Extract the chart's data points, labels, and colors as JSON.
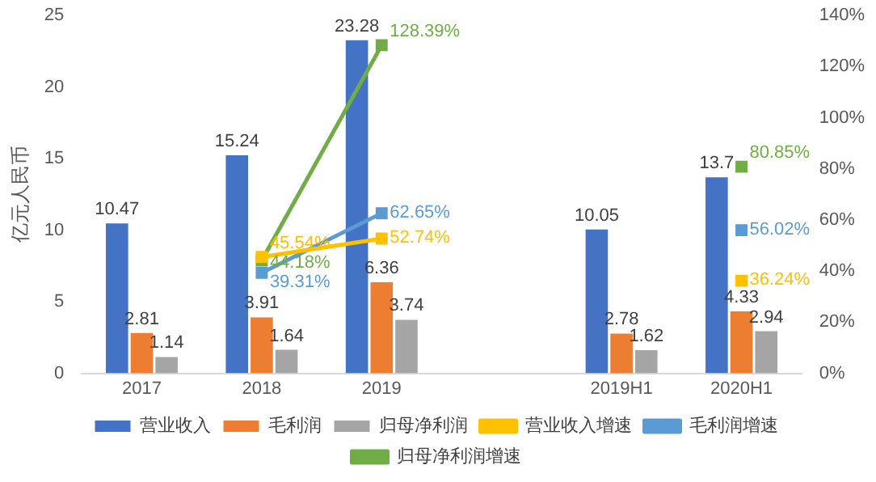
{
  "chart_data": {
    "type": "bar",
    "ylabel": "亿元人民币",
    "categories": [
      "2017",
      "2018",
      "2019",
      null,
      "2019H1",
      "2020H1"
    ],
    "series": [
      {
        "name": "营业收入",
        "color": "#4472c4",
        "values": [
          10.47,
          15.24,
          23.28,
          null,
          10.05,
          13.7
        ],
        "value_labels": [
          "10.47",
          "15.24",
          "23.28",
          null,
          "10.05",
          "13.7"
        ]
      },
      {
        "name": "毛利润",
        "color": "#ed7d31",
        "values": [
          2.81,
          3.91,
          6.36,
          null,
          2.78,
          4.33
        ],
        "value_labels": [
          "2.81",
          "3.91",
          "6.36",
          null,
          "2.78",
          "4.33"
        ]
      },
      {
        "name": "归母净利润",
        "color": "#a5a5a5",
        "values": [
          1.14,
          1.64,
          3.74,
          null,
          1.62,
          2.94
        ],
        "value_labels": [
          "1.14",
          "1.64",
          "3.74",
          null,
          "1.62",
          "2.94"
        ]
      },
      {
        "name": "营业收入增速",
        "type": "line",
        "axis": "y2",
        "color": "#ffc000",
        "values": [
          null,
          45.54,
          52.74,
          null,
          null,
          36.24
        ],
        "value_labels": [
          null,
          "45.54%",
          "52.74%",
          null,
          null,
          "36.24%"
        ]
      },
      {
        "name": "毛利润增速",
        "type": "line",
        "axis": "y2",
        "color": "#5b9bd5",
        "values": [
          null,
          39.31,
          62.65,
          null,
          null,
          56.02
        ],
        "value_labels": [
          null,
          "39.31%",
          "62.65%",
          null,
          null,
          "56.02%"
        ]
      },
      {
        "name": "归母净利润增速",
        "type": "line",
        "axis": "y2",
        "color": "#70ad47",
        "values": [
          null,
          44.18,
          128.39,
          null,
          null,
          80.85
        ],
        "value_labels": [
          null,
          "44.18%",
          "128.39%",
          null,
          null,
          "80.85%"
        ]
      }
    ],
    "ylim": [
      0,
      25
    ],
    "yticks": [
      0,
      5,
      10,
      15,
      20,
      25
    ],
    "y2lim": [
      0,
      140
    ],
    "y2ticks": [
      {
        "value": 0,
        "label": "0%"
      },
      {
        "value": 20,
        "label": "20%"
      },
      {
        "value": 40,
        "label": "40%"
      },
      {
        "value": 60,
        "label": "60%"
      },
      {
        "value": 80,
        "label": "80%"
      },
      {
        "value": 100,
        "label": "100%"
      },
      {
        "value": 120,
        "label": "120%"
      },
      {
        "value": 140,
        "label": "140%"
      }
    ],
    "legend": "bottom",
    "marker": "square",
    "grid": false
  }
}
